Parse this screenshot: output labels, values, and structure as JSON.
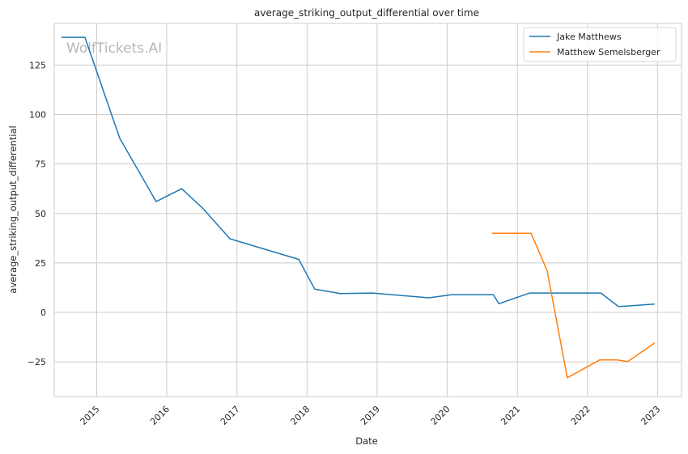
{
  "chart_data": {
    "type": "line",
    "title": "average_striking_output_differential over time",
    "xlabel": "Date",
    "ylabel": "average_striking_output_differential",
    "watermark": "WolfTickets.AI",
    "x_ticks": [
      "2015",
      "2016",
      "2017",
      "2018",
      "2019",
      "2020",
      "2021",
      "2022",
      "2023"
    ],
    "y_ticks": [
      -25,
      0,
      25,
      50,
      75,
      100,
      125
    ],
    "xlim": [
      "2014-05-25",
      "2023-05-06"
    ],
    "ylim": [
      -42.5,
      146
    ],
    "grid": true,
    "legend_position": "top-right",
    "series": [
      {
        "name": "Jake Matthews",
        "color": "#1f77b4",
        "points": [
          [
            "2014-07-01",
            139
          ],
          [
            "2014-11-01",
            139
          ],
          [
            "2015-05-01",
            88
          ],
          [
            "2015-11-07",
            56
          ],
          [
            "2016-03-19",
            62.5
          ],
          [
            "2016-07-08",
            52.5
          ],
          [
            "2016-11-26",
            37.2
          ],
          [
            "2017-11-19",
            26.8
          ],
          [
            "2018-02-10",
            11.8
          ],
          [
            "2018-06-23",
            9.5
          ],
          [
            "2018-12-08",
            9.8
          ],
          [
            "2019-09-28",
            7.4
          ],
          [
            "2020-01-25",
            9
          ],
          [
            "2020-08-29",
            9
          ],
          [
            "2020-09-26",
            4.4
          ],
          [
            "2021-03-06",
            9.8
          ],
          [
            "2022-03-12",
            9.8
          ],
          [
            "2022-06-11",
            3
          ],
          [
            "2022-07-23",
            3.2
          ],
          [
            "2022-12-17",
            4.2
          ]
        ]
      },
      {
        "name": "Matthew Semelsberger",
        "color": "#ff7f0e",
        "points": [
          [
            "2020-08-22",
            40
          ],
          [
            "2021-03-13",
            40
          ],
          [
            "2021-06-05",
            21
          ],
          [
            "2021-09-18",
            -33
          ],
          [
            "2022-03-05",
            -24
          ],
          [
            "2022-06-04",
            -24
          ],
          [
            "2022-07-30",
            -24.8
          ],
          [
            "2022-12-17",
            -15.4
          ]
        ]
      }
    ]
  }
}
